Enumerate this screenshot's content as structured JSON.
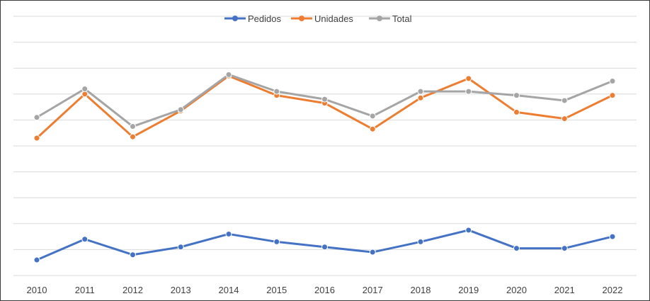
{
  "chart_data": {
    "type": "line",
    "categories": [
      "2010",
      "2011",
      "2012",
      "2013",
      "2014",
      "2015",
      "2016",
      "2017",
      "2018",
      "2019",
      "2020",
      "2021",
      "2022"
    ],
    "ylim": [
      0,
      100
    ],
    "grid": true,
    "legend_position": "top-center",
    "series": [
      {
        "name": "Pedidos",
        "color": "#4472C4",
        "values": [
          6,
          14,
          8,
          11,
          16,
          13,
          11,
          9,
          13,
          17.5,
          10.5,
          10.5,
          15
        ]
      },
      {
        "name": "Unidades",
        "color": "#ED7D31",
        "values": [
          53,
          70,
          53.5,
          63.5,
          77,
          69.5,
          66.5,
          56.5,
          68.5,
          76,
          63,
          60.5,
          69.5
        ]
      },
      {
        "name": "Total",
        "color": "#A5A5A5",
        "values": [
          61,
          72,
          57.5,
          64,
          77.5,
          71,
          68,
          61.5,
          71,
          71,
          69.5,
          67.5,
          75
        ]
      }
    ]
  }
}
